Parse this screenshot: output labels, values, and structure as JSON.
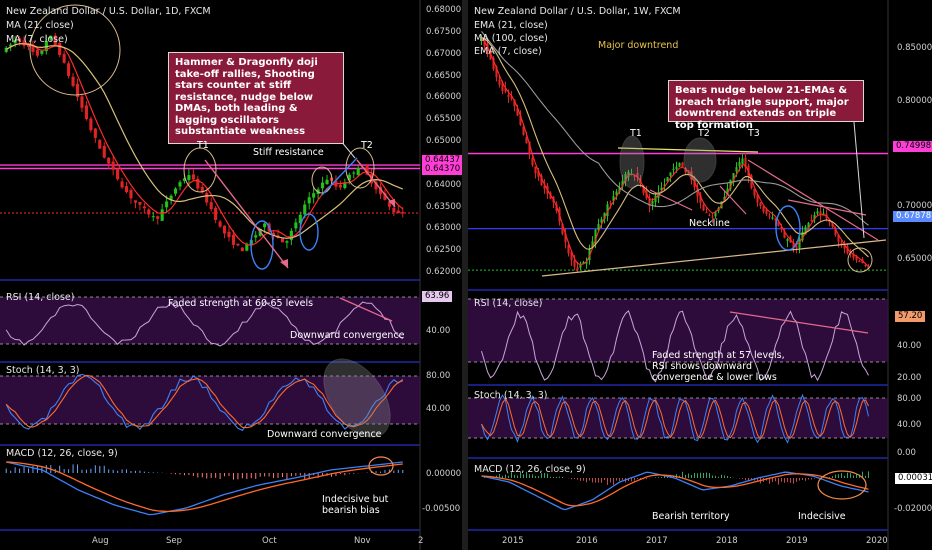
{
  "left_chart": {
    "pair_title": "New Zealand Dollar / U.S. Dollar, 1D, FXCM",
    "ma_legends": [
      "MA (21, close)",
      "MA (7, close)"
    ],
    "callout": "Hammer & Dragonfly doji take-off rallies, Shooting stars counter at stiff resistance, nudge below DMAs, both leading & lagging oscillators substantiate weakness",
    "annotations": {
      "t1": "T1",
      "t2": "T2",
      "stiff_resistance": "Stiff resistance"
    },
    "price_ticks": [
      "0.68000",
      "0.67500",
      "0.67000",
      "0.66500",
      "0.66000",
      "0.65500",
      "0.65000",
      "0.64500",
      "0.64000",
      "0.63500",
      "0.63000",
      "0.62500",
      "0.62000"
    ],
    "price_tags": {
      "top": "0.64437",
      "bottom": "0.64370"
    },
    "rsi": {
      "legend": "RSI (14, close)",
      "tag": "63.96",
      "tick": "40.00",
      "note_top": "Faded strength at 60-65 levels",
      "note_bottom": "Downward convergence"
    },
    "stoch": {
      "legend": "Stoch (14, 3, 3)",
      "ticks": [
        "80.00",
        "40.00"
      ],
      "note": "Downward convergence"
    },
    "macd": {
      "legend": "MACD (12, 26, close, 9)",
      "ticks": [
        "0.00000",
        "-0.00500"
      ],
      "note": "Indecisive but bearish bias"
    },
    "x_ticks": [
      "Aug",
      "Sep",
      "Oct",
      "Nov",
      "2"
    ]
  },
  "right_chart": {
    "pair_title": "New Zealand Dollar / U.S. Dollar, 1W, FXCM",
    "ma_legends": [
      "EMA (21, close)",
      "MA (100, close)",
      "EMA (7, close)"
    ],
    "major_downtrend": "Major downtrend",
    "callout": "Bears nudge below 21-EMAs & breach triangle support, major downtrend extends on triple top formation",
    "annotations": {
      "t1": "T1",
      "t2": "T2",
      "t3": "T3",
      "neckline": "Neckline"
    },
    "price_ticks": [
      "0.85000",
      "0.80000",
      "0.70000",
      "0.65000"
    ],
    "price_tags": {
      "top": "0.74998",
      "bottom": "0.67878"
    },
    "rsi": {
      "legend": "RSI (14, close)",
      "tag": "57.20",
      "ticks": [
        "40.00",
        "20.00"
      ],
      "note": "Faded strength at 57 levels, RSI shows downward convergence & lower lows"
    },
    "stoch": {
      "legend": "Stoch (14, 3, 3)",
      "ticks": [
        "80.00",
        "40.00",
        "0.00"
      ]
    },
    "macd": {
      "legend": "MACD (12, 26, close, 9)",
      "tag": "0.00031",
      "ticks": [
        "-0.02000"
      ],
      "note_left": "Bearish territory",
      "note_right": "Indecisive"
    },
    "x_ticks": [
      "2015",
      "2016",
      "2017",
      "2018",
      "2019",
      "2020"
    ]
  },
  "colors": {
    "bull": "#22c21e",
    "bear": "#e02424",
    "ma_red": "#ff2a2a",
    "ma_tan": "#d8c07a",
    "magenta": "#ff3ed8",
    "blue_line": "#2f3cff",
    "rsi_line": "#c9a3d8",
    "stoch_k": "#3b82f6",
    "stoch_d": "#ff6a2a",
    "callout_bg": "#8a1a3a",
    "band": "#3c1050"
  }
}
